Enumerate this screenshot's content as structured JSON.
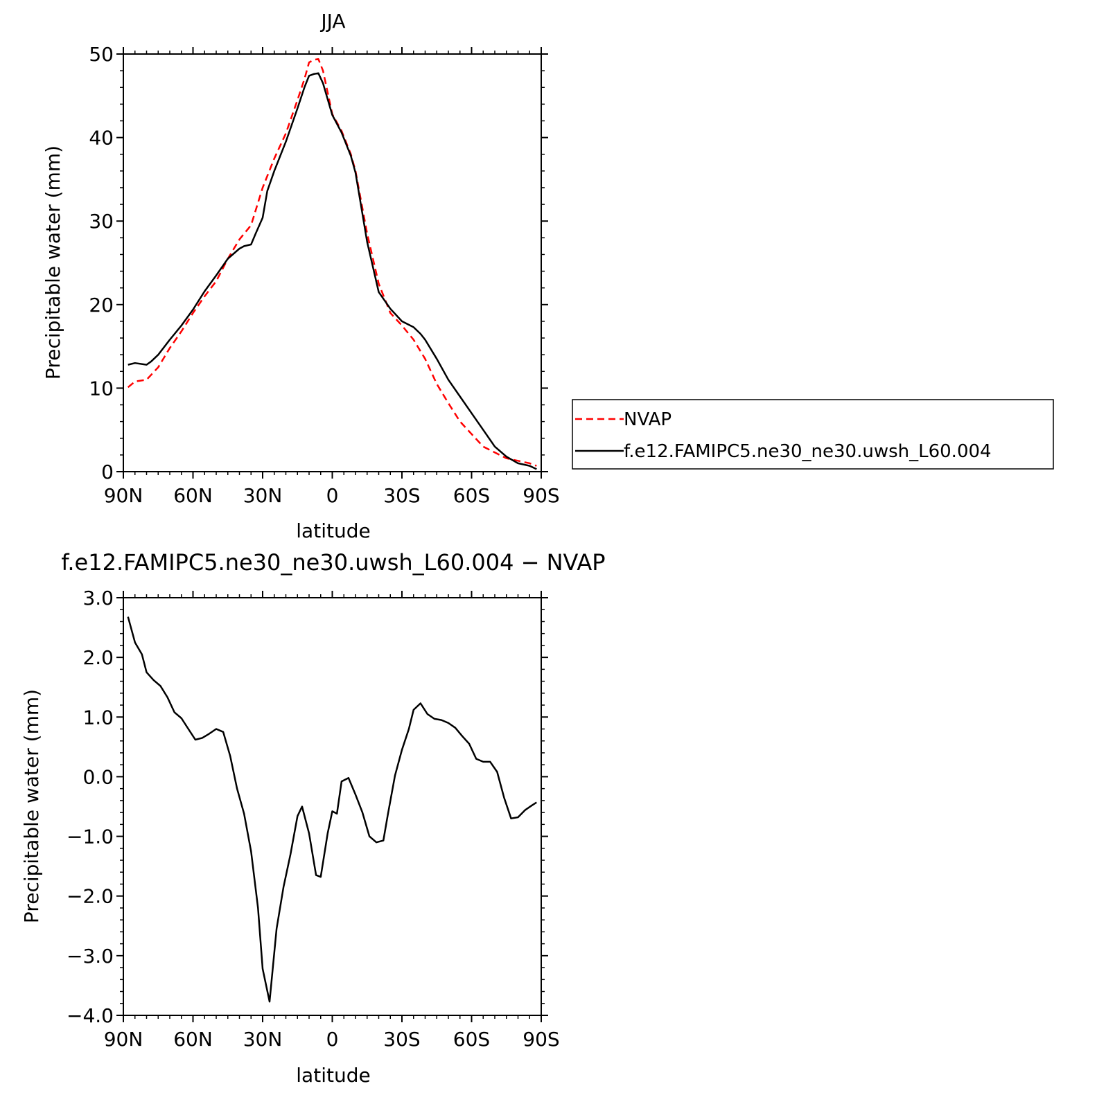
{
  "colors": {
    "nvap": "#ff0000",
    "model": "#000000"
  },
  "chart_data": [
    {
      "type": "line",
      "title": "JJA",
      "xlabel": "latitude",
      "ylabel": "Precipitable water (mm)",
      "xlim": [
        90,
        -90
      ],
      "ylim": [
        0,
        50
      ],
      "xticks": [
        {
          "value": 90,
          "label": "90N"
        },
        {
          "value": 60,
          "label": "60N"
        },
        {
          "value": 30,
          "label": "30N"
        },
        {
          "value": 0,
          "label": "0"
        },
        {
          "value": -30,
          "label": "30S"
        },
        {
          "value": -60,
          "label": "60S"
        },
        {
          "value": -90,
          "label": "90S"
        }
      ],
      "yticks": [
        {
          "value": 0,
          "label": "0"
        },
        {
          "value": 10,
          "label": "10"
        },
        {
          "value": 20,
          "label": "20"
        },
        {
          "value": 30,
          "label": "30"
        },
        {
          "value": 40,
          "label": "40"
        },
        {
          "value": 50,
          "label": "50"
        }
      ],
      "legend": {
        "position": "right"
      },
      "series": [
        {
          "name": "NVAP",
          "style": "dashed",
          "color": "#ff0000",
          "x": [
            88,
            85,
            80,
            75,
            70,
            65,
            60,
            55,
            50,
            45,
            40,
            35,
            30,
            25,
            20,
            15,
            12,
            10,
            8,
            6,
            4,
            0,
            -4,
            -8,
            -10,
            -15,
            -20,
            -25,
            -30,
            -35,
            -40,
            -45,
            -50,
            -55,
            -60,
            -65,
            -70,
            -75,
            -80,
            -85,
            -88
          ],
          "y": [
            10.1,
            10.8,
            11.0,
            12.5,
            14.8,
            16.8,
            19.0,
            21.0,
            22.8,
            25.5,
            27.8,
            29.5,
            34.0,
            37.5,
            40.5,
            44.5,
            47.0,
            49.0,
            49.3,
            49.4,
            48.0,
            42.8,
            40.8,
            38.0,
            36.0,
            28.5,
            22.5,
            19.0,
            17.5,
            15.8,
            13.5,
            10.5,
            8.2,
            6.0,
            4.5,
            3.0,
            2.3,
            1.6,
            1.3,
            1.0,
            0.7
          ]
        },
        {
          "name": "f.e12.FAMIPC5.ne30_ne30.uwsh_L60.004",
          "style": "solid",
          "color": "#000000",
          "x": [
            88,
            85,
            80,
            78,
            75,
            70,
            65,
            60,
            55,
            50,
            45,
            40,
            38,
            35,
            33,
            30,
            28,
            25,
            20,
            15,
            12,
            10,
            8,
            6,
            4,
            0,
            -4,
            -8,
            -10,
            -15,
            -20,
            -25,
            -30,
            -35,
            -38,
            -40,
            -45,
            -50,
            -55,
            -60,
            -65,
            -70,
            -75,
            -80,
            -85,
            -88
          ],
          "y": [
            12.8,
            13.0,
            12.8,
            13.2,
            14.0,
            15.8,
            17.5,
            19.4,
            21.6,
            23.5,
            25.5,
            26.7,
            27.0,
            27.2,
            28.5,
            30.4,
            33.6,
            36.0,
            39.5,
            43.5,
            46.0,
            47.4,
            47.6,
            47.7,
            46.5,
            42.7,
            40.6,
            37.8,
            35.8,
            27.5,
            21.5,
            19.5,
            18.0,
            17.3,
            16.5,
            15.8,
            13.5,
            11.0,
            9.0,
            7.0,
            5.0,
            3.0,
            1.8,
            1.0,
            0.7,
            0.3
          ]
        }
      ]
    },
    {
      "type": "line",
      "title": "f.e12.FAMIPC5.ne30_ne30.uwsh_L60.004 − NVAP",
      "xlabel": "latitude",
      "ylabel": "Precipitable water (mm)",
      "xlim": [
        90,
        -90
      ],
      "ylim": [
        -4.0,
        3.0
      ],
      "xticks": [
        {
          "value": 90,
          "label": "90N"
        },
        {
          "value": 60,
          "label": "60N"
        },
        {
          "value": 30,
          "label": "30N"
        },
        {
          "value": 0,
          "label": "0"
        },
        {
          "value": -30,
          "label": "30S"
        },
        {
          "value": -60,
          "label": "60S"
        },
        {
          "value": -90,
          "label": "90S"
        }
      ],
      "yticks": [
        {
          "value": 3.0,
          "label": "3.0"
        },
        {
          "value": 2.0,
          "label": "2.0"
        },
        {
          "value": 1.0,
          "label": "1.0"
        },
        {
          "value": 0.0,
          "label": "0.0"
        },
        {
          "value": -1.0,
          "label": "−1.0"
        },
        {
          "value": -2.0,
          "label": "−2.0"
        },
        {
          "value": -3.0,
          "label": "−3.0"
        },
        {
          "value": -4.0,
          "label": "−4.0"
        }
      ],
      "series": [
        {
          "style": "solid",
          "color": "#000000",
          "x": [
            88,
            85,
            82,
            80,
            77,
            74,
            71,
            68,
            65,
            62,
            59,
            56,
            53,
            50,
            47,
            44,
            41,
            38,
            35,
            32,
            30,
            27,
            24,
            21,
            18,
            15,
            13,
            10,
            7,
            5,
            2,
            0,
            -2,
            -4,
            -7,
            -10,
            -13,
            -16,
            -19,
            -22,
            -24,
            -27,
            -30,
            -33,
            -35,
            -38,
            -41,
            -44,
            -47,
            -50,
            -53,
            -56,
            -59,
            -62,
            -65,
            -68,
            -71,
            -74,
            -77,
            -80,
            -83,
            -86,
            -88
          ],
          "y": [
            2.68,
            2.25,
            2.05,
            1.75,
            1.62,
            1.52,
            1.33,
            1.08,
            0.98,
            0.8,
            0.62,
            0.65,
            0.72,
            0.8,
            0.75,
            0.35,
            -0.2,
            -0.62,
            -1.25,
            -2.2,
            -3.22,
            -3.77,
            -2.55,
            -1.85,
            -1.3,
            -0.66,
            -0.5,
            -0.95,
            -1.65,
            -1.68,
            -0.95,
            -0.58,
            -0.62,
            -0.08,
            -0.02,
            -0.3,
            -0.6,
            -1.0,
            -1.1,
            -1.07,
            -0.62,
            0.02,
            0.45,
            0.8,
            1.12,
            1.23,
            1.05,
            0.97,
            0.95,
            0.9,
            0.82,
            0.68,
            0.55,
            0.3,
            0.25,
            0.25,
            0.08,
            -0.35,
            -0.7,
            -0.68,
            -0.56,
            -0.48,
            -0.43
          ]
        }
      ]
    }
  ]
}
